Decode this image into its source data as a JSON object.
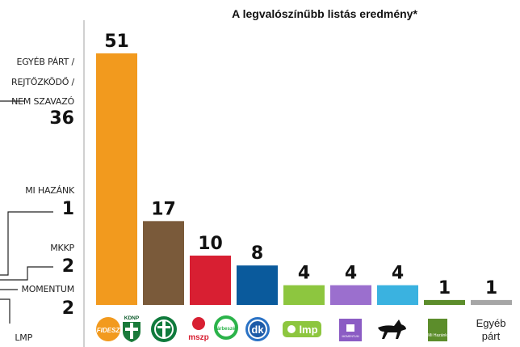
{
  "chart_data": {
    "type": "bar",
    "title": "A legvalószínűbb listás eredmény*",
    "categories": [
      "FIDESZ KDNP",
      "Jobbik",
      "MSZP Párbeszéd",
      "DK",
      "LMP",
      "Momentum",
      "MKKP",
      "Mi Hazánk",
      "Egyéb párt"
    ],
    "values": [
      51,
      17,
      10,
      8,
      4,
      4,
      4,
      1,
      1
    ],
    "colors": [
      "#f29a1e",
      "#7a5a3a",
      "#d81f32",
      "#0a5a9c",
      "#8dc63f",
      "#9b6fce",
      "#3ab2e0",
      "#5c8d2b",
      "#a6a6a6"
    ],
    "ylim": [
      0,
      55
    ],
    "legend_placement": "none",
    "grid": false
  },
  "side_labels": [
    {
      "lines": [
        "EGYÉB PÁRT /",
        "REJTŐZKÖDŐ /",
        "NEM SZAVAZÓ"
      ],
      "value": "36"
    },
    {
      "lines": [
        "MI HAZÁNK"
      ],
      "value": "1"
    },
    {
      "lines": [
        "MKKP"
      ],
      "value": "2"
    },
    {
      "lines": [
        "MOMENTUM"
      ],
      "value": "2"
    },
    {
      "lines": [
        "LMP"
      ],
      "value": ""
    }
  ],
  "logos": {
    "fidesz": "FIDESZ",
    "kdnp": "KDNP",
    "mszp": "mszp",
    "parbeszed": "párbeszéd",
    "dk": "dk",
    "lmp": "lmp",
    "momentum": "MOMENTUM",
    "mihazank": "Mi Hazánk",
    "egyeb": "Egyéb párt"
  }
}
